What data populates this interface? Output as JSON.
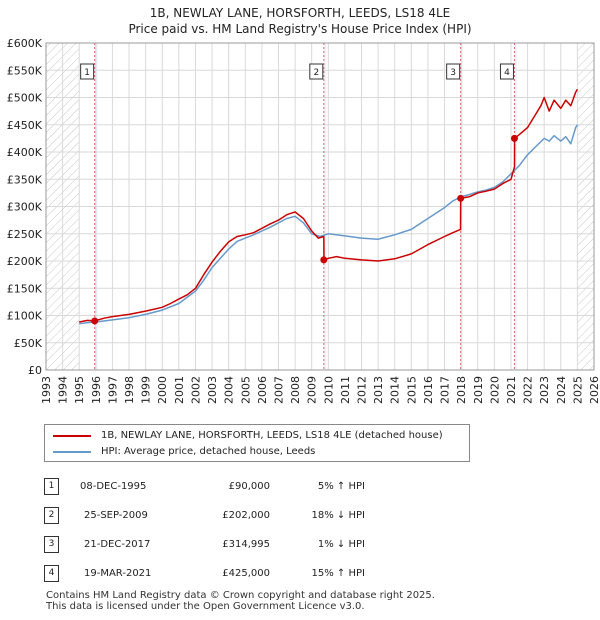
{
  "title_line1": "1B, NEWLAY LANE, HORSFORTH, LEEDS, LS18 4LE",
  "title_line2": "Price paid vs. HM Land Registry's House Price Index (HPI)",
  "chart_data": {
    "type": "line",
    "xlim": [
      1993,
      2026
    ],
    "ylim": [
      0,
      600000
    ],
    "y_ticks": [
      0,
      50000,
      100000,
      150000,
      200000,
      250000,
      300000,
      350000,
      400000,
      450000,
      500000,
      550000,
      600000
    ],
    "y_tick_labels": [
      "£0",
      "£50K",
      "£100K",
      "£150K",
      "£200K",
      "£250K",
      "£300K",
      "£350K",
      "£400K",
      "£450K",
      "£500K",
      "£550K",
      "£600K"
    ],
    "x_ticks": [
      "1993",
      "1994",
      "1995",
      "1996",
      "1997",
      "1998",
      "1999",
      "2000",
      "2001",
      "2002",
      "2003",
      "2004",
      "2005",
      "2006",
      "2007",
      "2008",
      "2009",
      "2010",
      "2011",
      "2012",
      "2013",
      "2014",
      "2015",
      "2016",
      "2017",
      "2018",
      "2019",
      "2020",
      "2021",
      "2022",
      "2023",
      "2024",
      "2025",
      "2026"
    ],
    "hatched_ranges": [
      [
        1993,
        1995.0
      ],
      [
        2025.0,
        2026
      ]
    ],
    "series": [
      {
        "name": "1B, NEWLAY LANE, HORSFORTH, LEEDS, LS18 4LE (detached house)",
        "color": "#cc0000",
        "x": [
          1995.0,
          1995.5,
          1995.93,
          1996.5,
          1997,
          1998,
          1999,
          2000,
          2000.5,
          2001,
          2001.5,
          2002,
          2002.5,
          2003,
          2003.5,
          2004,
          2004.5,
          2005,
          2005.5,
          2006,
          2006.5,
          2007,
          2007.5,
          2008,
          2008.5,
          2009,
          2009.4,
          2009.73,
          2009.74,
          2010,
          2010.5,
          2011,
          2012,
          2013,
          2014,
          2015,
          2016,
          2017,
          2017.5,
          2017.96,
          2017.97,
          2018.5,
          2019,
          2019.5,
          2020,
          2020.5,
          2021,
          2021.21,
          2021.22,
          2021.5,
          2022,
          2022.5,
          2022.8,
          2023,
          2023.3,
          2023.6,
          2024,
          2024.3,
          2024.6,
          2024.9,
          2025
        ],
        "y": [
          88000,
          91000,
          90000,
          95000,
          98000,
          102000,
          108000,
          115000,
          122000,
          130000,
          138000,
          150000,
          175000,
          198000,
          218000,
          235000,
          245000,
          248000,
          252000,
          260000,
          268000,
          275000,
          285000,
          290000,
          278000,
          255000,
          242000,
          245000,
          202000,
          205000,
          208000,
          205000,
          202000,
          200000,
          204000,
          213000,
          230000,
          245000,
          252000,
          258000,
          314995,
          318000,
          325000,
          328000,
          332000,
          342000,
          350000,
          373000,
          425000,
          432000,
          445000,
          470000,
          485000,
          500000,
          475000,
          495000,
          480000,
          495000,
          485000,
          510000,
          515000
        ]
      },
      {
        "name": "HPI: Average price, detached house, Leeds",
        "color": "#6699cc",
        "x": [
          1995.0,
          1995.5,
          1996,
          1997,
          1998,
          1999,
          2000,
          2001,
          2002,
          2002.5,
          2003,
          2003.5,
          2004,
          2004.5,
          2005,
          2005.5,
          2006,
          2006.5,
          2007,
          2007.5,
          2008,
          2008.5,
          2009,
          2009.5,
          2010,
          2011,
          2012,
          2013,
          2014,
          2015,
          2016,
          2017,
          2017.5,
          2018,
          2018.5,
          2019,
          2019.5,
          2020,
          2020.5,
          2021,
          2021.5,
          2022,
          2022.5,
          2023,
          2023.3,
          2023.6,
          2024,
          2024.3,
          2024.6,
          2024.9,
          2025
        ],
        "y": [
          85000,
          87000,
          88000,
          92000,
          96000,
          102000,
          110000,
          122000,
          145000,
          165000,
          188000,
          205000,
          222000,
          236000,
          242000,
          248000,
          255000,
          262000,
          270000,
          278000,
          282000,
          270000,
          250000,
          245000,
          250000,
          246000,
          242000,
          240000,
          248000,
          258000,
          278000,
          298000,
          310000,
          318000,
          322000,
          327000,
          330000,
          335000,
          345000,
          360000,
          375000,
          395000,
          410000,
          425000,
          420000,
          430000,
          420000,
          428000,
          415000,
          445000,
          450000
        ]
      }
    ],
    "sales": [
      {
        "label": "1",
        "x": 1995.93,
        "y": 90000
      },
      {
        "label": "2",
        "x": 2009.73,
        "y": 202000
      },
      {
        "label": "3",
        "x": 2017.97,
        "y": 314995
      },
      {
        "label": "4",
        "x": 2021.21,
        "y": 425000
      }
    ]
  },
  "legend": {
    "red": "1B, NEWLAY LANE, HORSFORTH, LEEDS, LS18 4LE (detached house)",
    "blue": "HPI: Average price, detached house, Leeds"
  },
  "table": [
    {
      "num": "1",
      "date": "08-DEC-1995",
      "price": "£90,000",
      "hpi": "5% ↑ HPI"
    },
    {
      "num": "2",
      "date": "25-SEP-2009",
      "price": "£202,000",
      "hpi": "18% ↓ HPI"
    },
    {
      "num": "3",
      "date": "21-DEC-2017",
      "price": "£314,995",
      "hpi": "1% ↓ HPI"
    },
    {
      "num": "4",
      "date": "19-MAR-2021",
      "price": "£425,000",
      "hpi": "15% ↑ HPI"
    }
  ],
  "footer_line1": "Contains HM Land Registry data © Crown copyright and database right 2025.",
  "footer_line2": "This data is licensed under the Open Government Licence v3.0."
}
